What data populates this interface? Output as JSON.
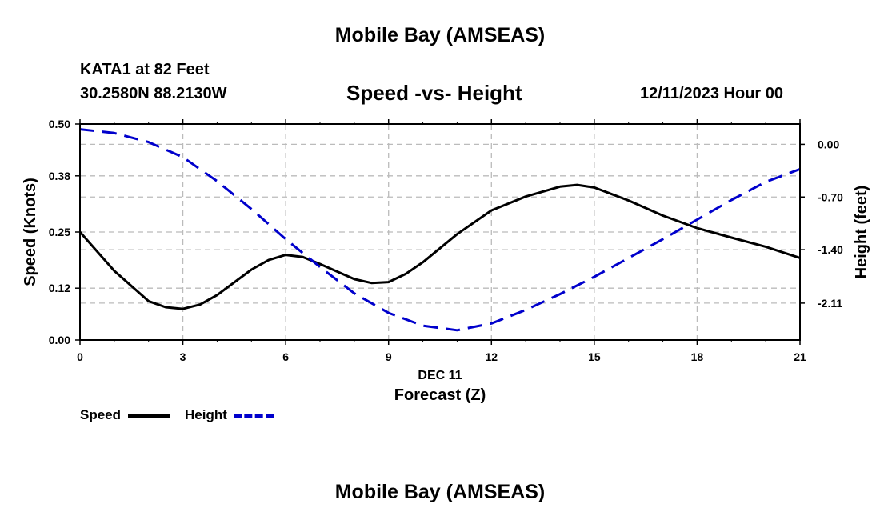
{
  "header": {
    "title": "Mobile Bay (AMSEAS)",
    "station": "KATA1 at 82 Feet",
    "coords": "30.2580N  88.2130W",
    "subtitle": "Speed -vs- Height",
    "date_hour": "12/11/2023 Hour 00"
  },
  "footer": {
    "title": "Mobile Bay (AMSEAS)"
  },
  "legend": {
    "speed_label": "Speed",
    "height_label": "Height"
  },
  "colors": {
    "speed": "#000000",
    "height": "#0000cc",
    "grid": "#bbbbbb"
  },
  "chart_data": {
    "type": "line",
    "title": "Speed -vs- Height",
    "xlabel": "Forecast (Z)",
    "x_date_label": "DEC 11",
    "ylabel_left": "Speed (Knots)",
    "ylabel_right": "Height (feet)",
    "x_ticks": [
      0,
      3,
      6,
      9,
      12,
      15,
      18,
      21
    ],
    "xlim": [
      0,
      21
    ],
    "y_left_ticks": [
      "0.00",
      "0.12",
      "0.25",
      "0.38",
      "0.50"
    ],
    "y_left_lim": [
      0,
      0.5
    ],
    "y_right_ticks": [
      "0.00",
      "-0.70",
      "-1.40",
      "-2.11"
    ],
    "y_right_lim": [
      -2.6,
      0.27
    ],
    "grid": true,
    "legend_position": "bottom-left",
    "series": [
      {
        "name": "Speed",
        "axis": "left",
        "style": "solid",
        "x": [
          0,
          1,
          2,
          2.5,
          3,
          3.5,
          4,
          5,
          5.5,
          6,
          6.5,
          7,
          8,
          8.5,
          9,
          9.5,
          10,
          11,
          12,
          13,
          14,
          14.5,
          15,
          16,
          17,
          18,
          19,
          20,
          21
        ],
        "y": [
          0.25,
          0.16,
          0.09,
          0.076,
          0.072,
          0.082,
          0.104,
          0.163,
          0.185,
          0.197,
          0.192,
          0.176,
          0.141,
          0.132,
          0.134,
          0.153,
          0.18,
          0.245,
          0.3,
          0.332,
          0.355,
          0.359,
          0.353,
          0.323,
          0.288,
          0.259,
          0.237,
          0.216,
          0.19
        ]
      },
      {
        "name": "Height",
        "axis": "right",
        "style": "dashed",
        "x": [
          0,
          1,
          2,
          3,
          4,
          5,
          6,
          7,
          8,
          9,
          10,
          11,
          12,
          13,
          14,
          15,
          16,
          17,
          18,
          19,
          20,
          21
        ],
        "y": [
          0.2,
          0.15,
          0.03,
          -0.17,
          -0.49,
          -0.86,
          -1.26,
          -1.63,
          -1.98,
          -2.24,
          -2.41,
          -2.47,
          -2.38,
          -2.2,
          -1.99,
          -1.76,
          -1.51,
          -1.26,
          -1.0,
          -0.74,
          -0.5,
          -0.33
        ]
      }
    ]
  }
}
